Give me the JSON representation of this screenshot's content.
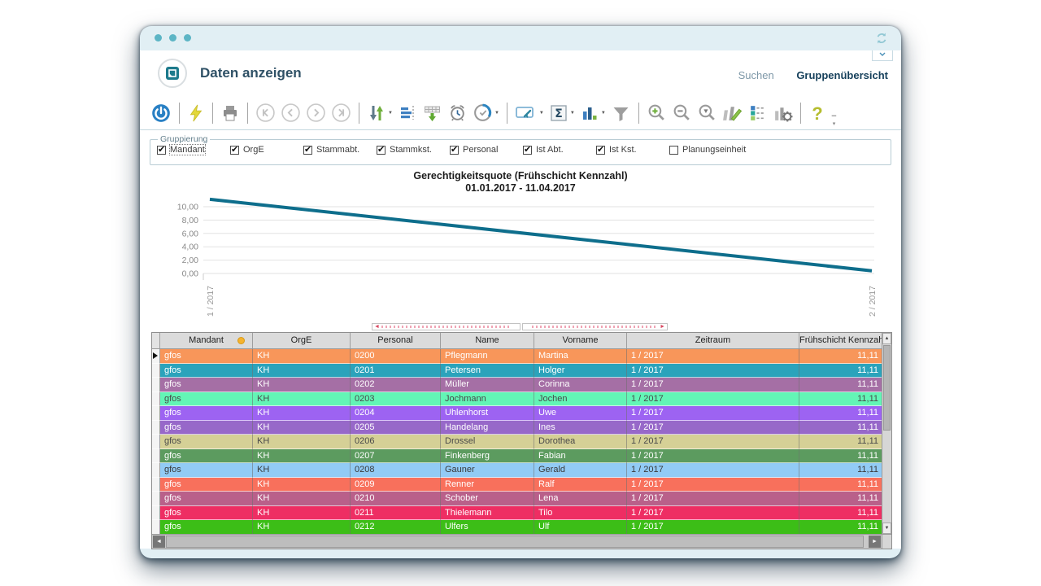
{
  "titlebar": {
    "window_controls": [
      "dot",
      "dot",
      "dot"
    ],
    "refresh_icon": "refresh-icon"
  },
  "header": {
    "title": "Daten anzeigen",
    "links": [
      {
        "label": "Suchen"
      },
      {
        "label": "Gruppenübersicht"
      }
    ]
  },
  "toolbar": {
    "icons": [
      "power",
      "lightning",
      "print",
      "nav-first",
      "nav-prev",
      "nav-next",
      "nav-last",
      "sort",
      "columns",
      "export-table",
      "alarm",
      "time-settings",
      "annotate",
      "sum",
      "chart-type",
      "filter",
      "zoom-in",
      "zoom-out",
      "zoom-reset",
      "edit-series",
      "legend",
      "chart-settings",
      "help",
      "overflow"
    ]
  },
  "grouping": {
    "legend": "Gruppierung",
    "items": [
      {
        "label": "Mandant",
        "checked": true,
        "focused": true
      },
      {
        "label": "OrgE",
        "checked": true
      },
      {
        "label": "Stammabt.",
        "checked": true
      },
      {
        "label": "Stammkst.",
        "checked": true
      },
      {
        "label": "Personal",
        "checked": true
      },
      {
        "label": "Ist Abt.",
        "checked": true
      },
      {
        "label": "Ist Kst.",
        "checked": true
      },
      {
        "label": "Planungseinheit",
        "checked": false
      }
    ]
  },
  "chart_data": {
    "type": "line",
    "title": "Gerechtigkeitsquote (Frühschicht Kennzahl)",
    "subtitle": "01.01.2017 - 11.04.2017",
    "x": [
      "1 / 2017",
      "2 / 2017"
    ],
    "series": [
      {
        "name": "Gerechtigkeitsquote",
        "values": [
          11.11,
          0.4
        ]
      }
    ],
    "ylim": [
      0,
      10
    ],
    "yticks": [
      0,
      2,
      4,
      6,
      8,
      10
    ],
    "ytick_labels": [
      "0,00",
      "2,00",
      "4,00",
      "6,00",
      "8,00",
      "10,00"
    ],
    "grid": true,
    "legend_position": "none",
    "line_color": "#0E6E8C"
  },
  "table": {
    "columns": [
      "Mandant",
      "OrgE",
      "Personal",
      "Name",
      "Vorname",
      "Zeitraum",
      "Frühschicht Kennzahl"
    ],
    "sort_indicator_column": "Mandant",
    "rows": [
      {
        "cells": [
          "gfos",
          "KH",
          "0200",
          "Pflegmann",
          "Martina",
          "1 / 2017",
          "11,11"
        ],
        "bg": "#F8965A",
        "fg": "#FFFFFF",
        "selected": true
      },
      {
        "cells": [
          "gfos",
          "KH",
          "0201",
          "Petersen",
          "Holger",
          "1 / 2017",
          "11,11"
        ],
        "bg": "#2BA3BB",
        "fg": "#FFFFFF"
      },
      {
        "cells": [
          "gfos",
          "KH",
          "0202",
          "Müller",
          "Corinna",
          "1 / 2017",
          "11,11"
        ],
        "bg": "#A56FA5",
        "fg": "#FFFFFF"
      },
      {
        "cells": [
          "gfos",
          "KH",
          "0203",
          "Jochmann",
          "Jochen",
          "1 / 2017",
          "11,11"
        ],
        "bg": "#63F5B6",
        "fg": "#4A4A4A"
      },
      {
        "cells": [
          "gfos",
          "KH",
          "0204",
          "Uhlenhorst",
          "Uwe",
          "1 / 2017",
          "11,11"
        ],
        "bg": "#9D63F2",
        "fg": "#FFFFFF"
      },
      {
        "cells": [
          "gfos",
          "KH",
          "0205",
          "Handelang",
          "Ines",
          "1 / 2017",
          "11,11"
        ],
        "bg": "#9768C9",
        "fg": "#FFFFFF"
      },
      {
        "cells": [
          "gfos",
          "KH",
          "0206",
          "Drossel",
          "Dorothea",
          "1 / 2017",
          "11,11"
        ],
        "bg": "#D5D096",
        "fg": "#4A4A4A"
      },
      {
        "cells": [
          "gfos",
          "KH",
          "0207",
          "Finkenberg",
          "Fabian",
          "1 / 2017",
          "11,11"
        ],
        "bg": "#5C9B5F",
        "fg": "#FFFFFF"
      },
      {
        "cells": [
          "gfos",
          "KH",
          "0208",
          "Gauner",
          "Gerald",
          "1 / 2017",
          "11,11"
        ],
        "bg": "#92CBF5",
        "fg": "#3A3A3A"
      },
      {
        "cells": [
          "gfos",
          "KH",
          "0209",
          "Renner",
          "Ralf",
          "1 / 2017",
          "11,11"
        ],
        "bg": "#F8705C",
        "fg": "#FFFFFF"
      },
      {
        "cells": [
          "gfos",
          "KH",
          "0210",
          "Schober",
          "Lena",
          "1 / 2017",
          "11,11"
        ],
        "bg": "#B9608A",
        "fg": "#FFFFFF"
      },
      {
        "cells": [
          "gfos",
          "KH",
          "0211",
          "Thielemann",
          "Tilo",
          "1 / 2017",
          "11,11"
        ],
        "bg": "#EE2E63",
        "fg": "#FFFFFF"
      },
      {
        "cells": [
          "gfos",
          "KH",
          "0212",
          "Ulfers",
          "Ulf",
          "1 / 2017",
          "11,11"
        ],
        "bg": "#3CBE17",
        "fg": "#FFFFFF"
      }
    ]
  }
}
